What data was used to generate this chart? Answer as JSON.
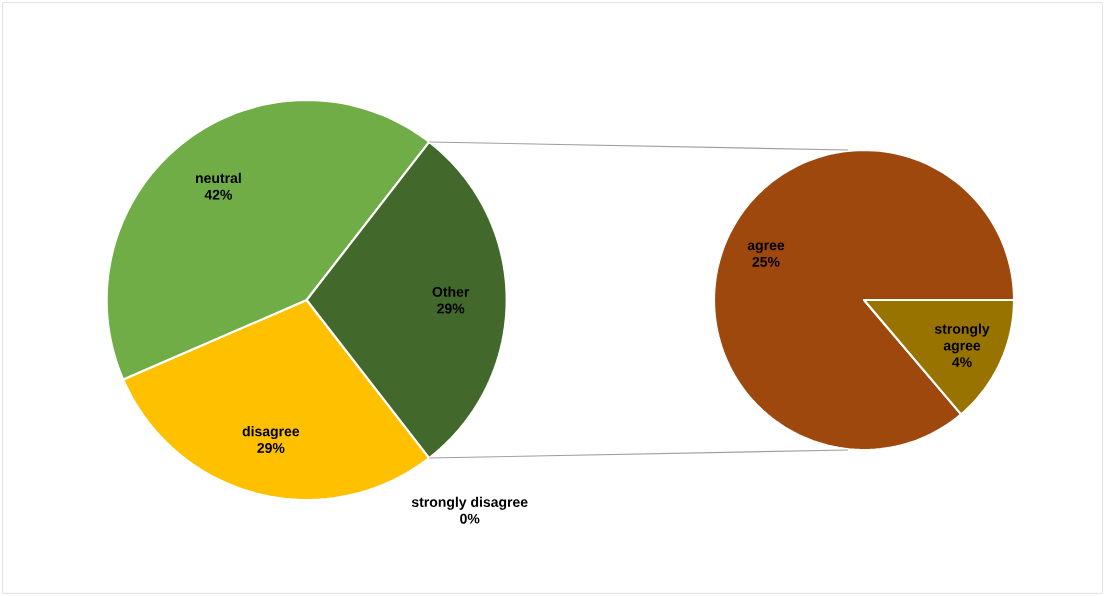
{
  "chart_data": [
    {
      "type": "pie",
      "categories": [
        "strongly disagree",
        "disagree",
        "neutral",
        "Other"
      ],
      "values": [
        0,
        29,
        42,
        29
      ],
      "value_labels": [
        "0%",
        "29%",
        "42%",
        "29%"
      ],
      "colors": [
        "#5b9bd5",
        "#ffc000",
        "#70ad47",
        "#43682b"
      ]
    },
    {
      "type": "pie",
      "categories": [
        "agree",
        "strongly agree"
      ],
      "values": [
        25,
        4
      ],
      "value_labels": [
        "25%",
        "4%"
      ],
      "colors": [
        "#9e480e",
        "#997300"
      ]
    }
  ]
}
